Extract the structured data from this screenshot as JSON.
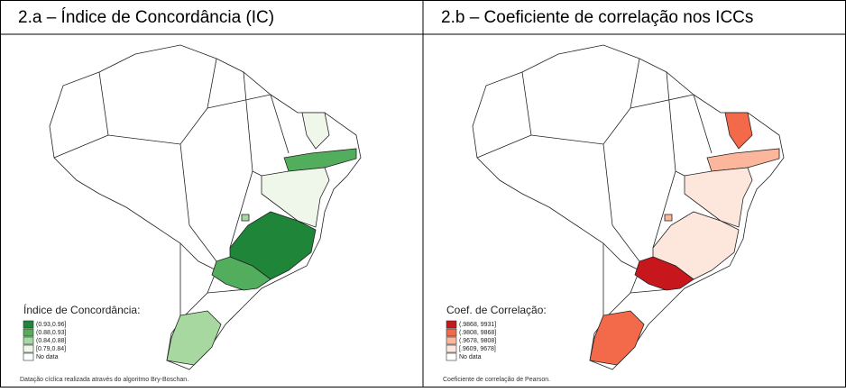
{
  "panels": [
    {
      "title": "2.a – Índice de Concordância (IC)",
      "legend": {
        "title": "Índice de Concordância:",
        "items": [
          {
            "label": "(0.93,0.96]",
            "color": "#1f8639"
          },
          {
            "label": "(0.88,0.93]",
            "color": "#52ad5c"
          },
          {
            "label": "(0.84,0.88]",
            "color": "#a6d8a0"
          },
          {
            "label": "[0.79,0.84]",
            "color": "#eef7ea"
          },
          {
            "label": "No data",
            "color": "#ffffff"
          }
        ]
      },
      "footnote": "Datação cíclica realizada através do algoritmo Bry-Boschan."
    },
    {
      "title": "2.b – Coeficiente de correlação nos ICCs",
      "legend": {
        "title": "Coef. de Correlação:",
        "items": [
          {
            "label": "(.9868, 9931]",
            "color": "#c8161d"
          },
          {
            "label": "(.9808, 9868]",
            "color": "#f26a4a"
          },
          {
            "label": "(.9678, 9808]",
            "color": "#fcb69b"
          },
          {
            "label": "[.9609, 9678]",
            "color": "#fde6dc"
          },
          {
            "label": "No data",
            "color": "#ffffff"
          }
        ]
      },
      "footnote": "Coeficiente de correlação de Pearson."
    }
  ]
}
